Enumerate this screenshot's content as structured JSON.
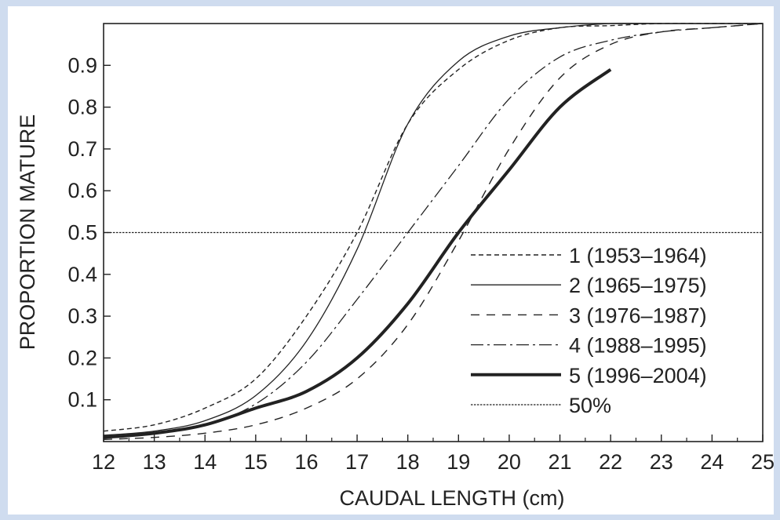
{
  "chart_data": {
    "type": "line",
    "xlabel": "CAUDAL LENGTH (cm)",
    "ylabel": "PROPORTION MATURE",
    "xlim": [
      12,
      25
    ],
    "ylim": [
      0,
      1
    ],
    "x_ticks": [
      12,
      13,
      14,
      15,
      16,
      17,
      18,
      19,
      20,
      21,
      22,
      23,
      24,
      25
    ],
    "y_ticks": [
      0.1,
      0.2,
      0.3,
      0.4,
      0.5,
      0.6,
      0.7,
      0.8,
      0.9
    ],
    "grid": false,
    "legend_position": "lower-right",
    "series": [
      {
        "name": "1 (1953–1964)",
        "style": "dashed-fine",
        "x": [
          12,
          13,
          14,
          15,
          16,
          17,
          18,
          19,
          20,
          21,
          22,
          23,
          24,
          25
        ],
        "y": [
          0.025,
          0.04,
          0.08,
          0.15,
          0.3,
          0.5,
          0.76,
          0.89,
          0.96,
          0.99,
          0.995,
          1.0,
          1.0,
          1.0
        ]
      },
      {
        "name": "2 (1965–1975)",
        "style": "solid-thin",
        "x": [
          12,
          13,
          14,
          15,
          16,
          17,
          18,
          19,
          20,
          21,
          22,
          23,
          24,
          25
        ],
        "y": [
          0.015,
          0.025,
          0.05,
          0.11,
          0.24,
          0.46,
          0.76,
          0.91,
          0.97,
          0.99,
          1.0,
          1.0,
          1.0,
          1.0
        ]
      },
      {
        "name": "3 (1976–1987)",
        "style": "dashed-wide",
        "x": [
          12,
          13,
          14,
          15,
          16,
          17,
          18,
          19,
          20,
          21,
          22,
          23,
          24,
          25
        ],
        "y": [
          0.005,
          0.01,
          0.02,
          0.04,
          0.08,
          0.15,
          0.28,
          0.48,
          0.7,
          0.87,
          0.95,
          0.98,
          0.99,
          1.0
        ]
      },
      {
        "name": "4 (1988–1995)",
        "style": "dash-dot",
        "x": [
          12,
          13,
          14,
          15,
          16,
          17,
          18,
          19,
          20,
          21,
          22,
          23,
          24,
          25
        ],
        "y": [
          0.01,
          0.02,
          0.04,
          0.09,
          0.19,
          0.34,
          0.5,
          0.66,
          0.82,
          0.92,
          0.96,
          0.98,
          0.99,
          1.0
        ]
      },
      {
        "name": "5 (1996–2004)",
        "style": "solid-thick",
        "x": [
          12,
          13,
          14,
          15,
          16,
          17,
          18,
          19,
          20,
          21,
          22
        ],
        "y": [
          0.01,
          0.02,
          0.04,
          0.08,
          0.12,
          0.2,
          0.33,
          0.5,
          0.65,
          0.8,
          0.89
        ]
      },
      {
        "name": "50%",
        "style": "dotted",
        "x": [
          12,
          25
        ],
        "y": [
          0.5,
          0.5
        ]
      }
    ]
  }
}
